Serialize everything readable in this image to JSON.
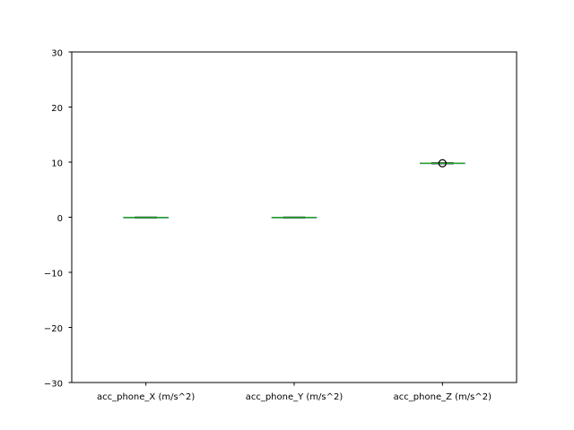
{
  "chart_data": {
    "type": "box",
    "categories": [
      "acc_phone_X (m/s^2)",
      "acc_phone_Y (m/s^2)",
      "acc_phone_Z (m/s^2)"
    ],
    "series": [
      {
        "boxes": [
          {
            "whislo": -0.15,
            "q1": -0.08,
            "med": -0.05,
            "q3": -0.02,
            "whishi": 0.05,
            "fliers": []
          },
          {
            "whislo": -0.15,
            "q1": -0.08,
            "med": -0.05,
            "q3": -0.02,
            "whishi": 0.05,
            "fliers": []
          },
          {
            "whislo": 9.7,
            "q1": 9.77,
            "med": 9.8,
            "q3": 9.83,
            "whishi": 9.9,
            "fliers": [
              9.8
            ]
          }
        ]
      }
    ],
    "yticks": [
      -30,
      -20,
      -10,
      0,
      10,
      20,
      30
    ],
    "ytick_labels": [
      "−30",
      "−20",
      "−10",
      "0",
      "10",
      "20",
      "30"
    ],
    "ylim": [
      -30,
      30
    ],
    "grid": false,
    "colors": {
      "box": "#1f77b4",
      "median": "#2ca02c",
      "whisker": "#000000",
      "flier": "#000000"
    }
  }
}
